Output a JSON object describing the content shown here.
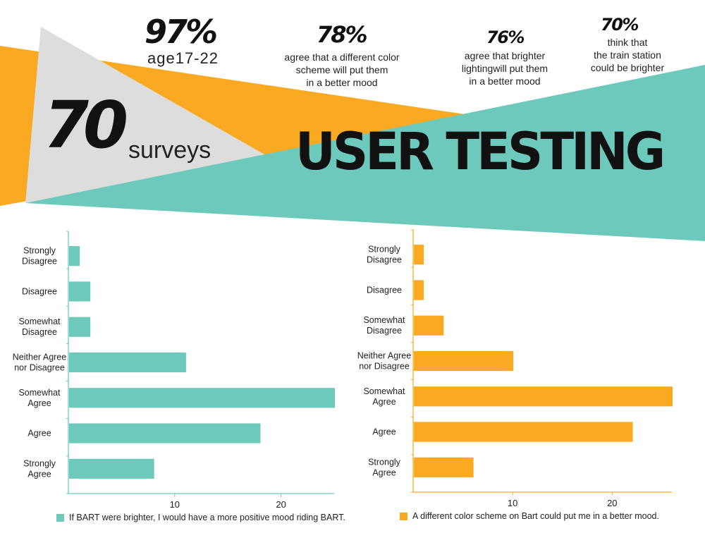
{
  "header": {
    "surveys_count": "70",
    "surveys_label": "surveys",
    "title": "USER TESTING",
    "stats": [
      {
        "value": "97%",
        "desc_lines": [
          "age17-22"
        ]
      },
      {
        "value": "78%",
        "desc_lines": [
          "agree that a different color",
          "scheme will put them",
          "in a better mood"
        ]
      },
      {
        "value": "76%",
        "desc_lines": [
          "agree that brighter",
          "lightingwill put them",
          "in a better mood"
        ]
      },
      {
        "value": "70%",
        "desc_lines": [
          "think that",
          "the train station",
          "could be brighter"
        ]
      }
    ]
  },
  "colors": {
    "teal": "#6cc9bc",
    "orange": "#f9aa22",
    "gray": "#dddddd",
    "dark": "#111111"
  },
  "chart_data": [
    {
      "type": "bar",
      "orientation": "horizontal",
      "categories": [
        [
          "Strongly",
          "Disagree"
        ],
        [
          "Disagree"
        ],
        [
          "Somewhat",
          "Disagree"
        ],
        [
          "Neither Agree",
          "nor Disagree"
        ],
        [
          "Somewhat",
          "Agree"
        ],
        [
          "Agree"
        ],
        [
          "Strongly",
          "Agree"
        ]
      ],
      "values": [
        1,
        2,
        2,
        11,
        25,
        18,
        8
      ],
      "xticks": [
        10,
        20
      ],
      "xlim": [
        0,
        25
      ],
      "legend": "If BART were brighter, I would have a more positive mood riding BART.",
      "color": "#6cc9bc"
    },
    {
      "type": "bar",
      "orientation": "horizontal",
      "categories": [
        [
          "Strongly",
          "Disagree"
        ],
        [
          "Disagree"
        ],
        [
          "Somewhat",
          "Disagree"
        ],
        [
          "Neither Agree",
          "nor Disagree"
        ],
        [
          "Somewhat",
          "Agree"
        ],
        [
          "Agree"
        ],
        [
          "Strongly",
          "Agree"
        ]
      ],
      "values": [
        1,
        1,
        3,
        10,
        26,
        22,
        6
      ],
      "xticks": [
        10,
        20
      ],
      "xlim": [
        0,
        26
      ],
      "legend": "A different color scheme on Bart could put me in a better mood.",
      "color": "#f9aa22"
    }
  ]
}
